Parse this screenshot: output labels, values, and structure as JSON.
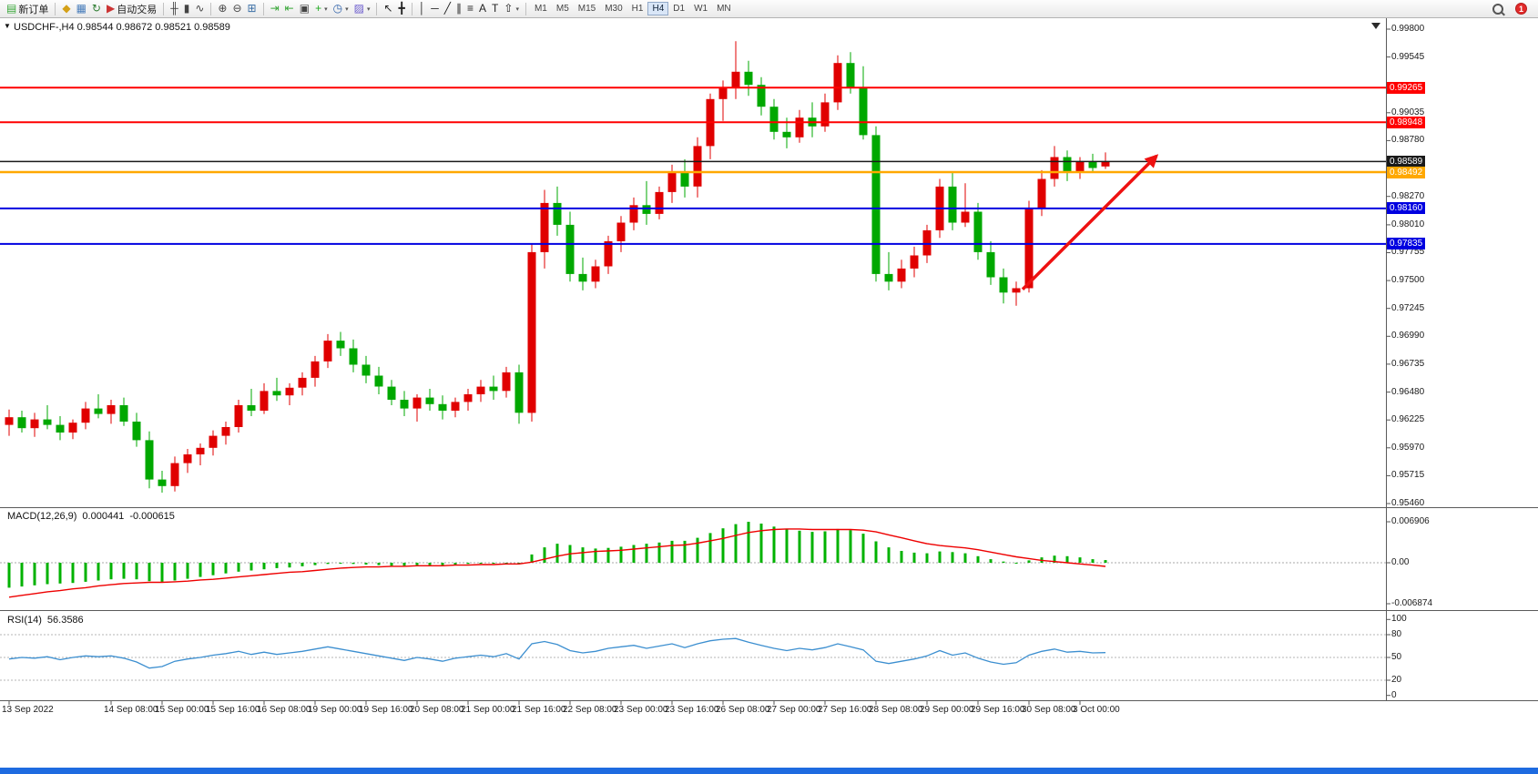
{
  "icons": {
    "triangle_down": "▼",
    "caret_down": "▾"
  },
  "window": {
    "taskbar_color": "#1e6be0"
  },
  "toolbar": {
    "notification_count": "1",
    "active_timeframe": "H4",
    "timeframes": [
      "M1",
      "M5",
      "M15",
      "M30",
      "H1",
      "H4",
      "D1",
      "W1",
      "MN"
    ],
    "items": [
      {
        "type": "button",
        "name": "new-order-button",
        "glyph": "▤",
        "color": "#3aa83a",
        "label": "新订单"
      },
      {
        "type": "sep"
      },
      {
        "type": "button",
        "name": "charts-window-button",
        "glyph": "◆",
        "color": "#d4a017"
      },
      {
        "type": "button",
        "name": "profiles-button",
        "glyph": "▦",
        "color": "#4a7ebb"
      },
      {
        "type": "button",
        "name": "refresh-button",
        "glyph": "↻",
        "color": "#2f7d32"
      },
      {
        "type": "button",
        "name": "auto-trading-button",
        "glyph": "▶",
        "color": "#cc3333",
        "label": "自动交易"
      },
      {
        "type": "sep"
      },
      {
        "type": "button",
        "name": "bar-chart-button",
        "glyph": "╫",
        "color": "#444444"
      },
      {
        "type": "button",
        "name": "candlestick-chart-button",
        "glyph": "▮",
        "color": "#444444"
      },
      {
        "type": "button",
        "name": "line-chart-button",
        "glyph": "∿",
        "color": "#444444"
      },
      {
        "type": "sep"
      },
      {
        "type": "button",
        "name": "zoom-in-button",
        "glyph": "⊕",
        "color": "#444444"
      },
      {
        "type": "button",
        "name": "zoom-out-button",
        "glyph": "⊖",
        "color": "#444444"
      },
      {
        "type": "button",
        "name": "tile-windows-button",
        "glyph": "⊞",
        "color": "#3a6ea5"
      },
      {
        "type": "sep"
      },
      {
        "type": "button",
        "name": "auto-scroll-button",
        "glyph": "⇥",
        "color": "#3aa83a"
      },
      {
        "type": "button",
        "name": "chart-shift-button",
        "glyph": "⇤",
        "color": "#3aa83a"
      },
      {
        "type": "button",
        "name": "new-chart-button",
        "glyph": "▣",
        "color": "#444444"
      },
      {
        "type": "button",
        "name": "indicators-button",
        "glyph": "+",
        "color": "#1faa1f",
        "caret": true
      },
      {
        "type": "button",
        "name": "periods-button",
        "glyph": "◷",
        "color": "#2b5fa8",
        "caret": true
      },
      {
        "type": "button",
        "name": "templates-button",
        "glyph": "▨",
        "color": "#6a5acd",
        "caret": true
      },
      {
        "type": "sep"
      },
      {
        "type": "button",
        "name": "cursor-button",
        "glyph": "↖",
        "color": "#222222"
      },
      {
        "type": "button",
        "name": "crosshair-button",
        "glyph": "╋",
        "color": "#222222"
      },
      {
        "type": "sep"
      },
      {
        "type": "button",
        "name": "vertical-line-button",
        "glyph": "│",
        "color": "#222222"
      },
      {
        "type": "button",
        "name": "horizontal-line-button",
        "glyph": "─",
        "color": "#222222"
      },
      {
        "type": "button",
        "name": "trendline-button",
        "glyph": "╱",
        "color": "#222222"
      },
      {
        "type": "button",
        "name": "channel-button",
        "glyph": "∥",
        "color": "#222222"
      },
      {
        "type": "button",
        "name": "fibonacci-button",
        "glyph": "≡",
        "color": "#222222"
      },
      {
        "type": "button",
        "name": "text-button",
        "glyph": "A",
        "color": "#222222"
      },
      {
        "type": "button",
        "name": "label-button",
        "glyph": "T",
        "color": "#222222"
      },
      {
        "type": "button",
        "name": "arrows-button",
        "glyph": "⇧",
        "color": "#222222",
        "caret": true
      },
      {
        "type": "sep"
      }
    ]
  },
  "chart": {
    "header_text": "USDCHF-,H4  0.98544 0.98672 0.98521 0.98589",
    "macd_label": "MACD(12,26,9)",
    "macd_main_value": "0.000441",
    "macd_signal_value": "-0.000615",
    "rsi_label": "RSI(14)",
    "rsi_value": "56.3586"
  },
  "chart_data": {
    "type": "candlestick",
    "symbol": "USDCHF",
    "period": "H4",
    "ohlc_current": {
      "open": 0.98544,
      "high": 0.98672,
      "low": 0.98521,
      "close": 0.98589
    },
    "ylim": [
      0.9546,
      0.998
    ],
    "bull_color": "#e00000",
    "bear_color": "#00a800",
    "candles": [
      [
        0.9618,
        0.9632,
        0.9608,
        0.9625
      ],
      [
        0.9625,
        0.9631,
        0.9611,
        0.9615
      ],
      [
        0.9615,
        0.9629,
        0.9607,
        0.9623
      ],
      [
        0.9623,
        0.9636,
        0.9614,
        0.9618
      ],
      [
        0.9618,
        0.9626,
        0.9604,
        0.9611
      ],
      [
        0.9611,
        0.9623,
        0.9605,
        0.962
      ],
      [
        0.962,
        0.9639,
        0.9614,
        0.9633
      ],
      [
        0.9633,
        0.9646,
        0.9624,
        0.9628
      ],
      [
        0.9628,
        0.9641,
        0.9619,
        0.9636
      ],
      [
        0.9636,
        0.9643,
        0.9617,
        0.9621
      ],
      [
        0.9621,
        0.9629,
        0.9598,
        0.9604
      ],
      [
        0.9604,
        0.9612,
        0.956,
        0.9568
      ],
      [
        0.9568,
        0.9576,
        0.9556,
        0.9562
      ],
      [
        0.9562,
        0.9589,
        0.9557,
        0.9583
      ],
      [
        0.9583,
        0.9596,
        0.9574,
        0.9591
      ],
      [
        0.9591,
        0.9601,
        0.9581,
        0.9597
      ],
      [
        0.9597,
        0.9613,
        0.959,
        0.9608
      ],
      [
        0.9608,
        0.9621,
        0.96,
        0.9616
      ],
      [
        0.9616,
        0.9641,
        0.9611,
        0.9636
      ],
      [
        0.9636,
        0.9651,
        0.9626,
        0.9631
      ],
      [
        0.9631,
        0.9656,
        0.9628,
        0.9649
      ],
      [
        0.9649,
        0.9661,
        0.964,
        0.9645
      ],
      [
        0.9645,
        0.9656,
        0.9636,
        0.9652
      ],
      [
        0.9652,
        0.9666,
        0.9645,
        0.9661
      ],
      [
        0.9661,
        0.9681,
        0.9653,
        0.9676
      ],
      [
        0.9676,
        0.9701,
        0.967,
        0.9695
      ],
      [
        0.9695,
        0.9703,
        0.9681,
        0.9688
      ],
      [
        0.9688,
        0.9696,
        0.9666,
        0.9673
      ],
      [
        0.9673,
        0.9681,
        0.9656,
        0.9663
      ],
      [
        0.9663,
        0.9671,
        0.9646,
        0.9653
      ],
      [
        0.9653,
        0.9659,
        0.9636,
        0.9641
      ],
      [
        0.9641,
        0.9649,
        0.9626,
        0.9633
      ],
      [
        0.9633,
        0.9646,
        0.9621,
        0.9643
      ],
      [
        0.9643,
        0.9651,
        0.9631,
        0.9637
      ],
      [
        0.9637,
        0.9645,
        0.9623,
        0.9631
      ],
      [
        0.9631,
        0.9643,
        0.9625,
        0.9639
      ],
      [
        0.9639,
        0.9651,
        0.9631,
        0.9646
      ],
      [
        0.9646,
        0.9659,
        0.9639,
        0.9653
      ],
      [
        0.9653,
        0.9663,
        0.9641,
        0.9649
      ],
      [
        0.9649,
        0.9671,
        0.9643,
        0.9666
      ],
      [
        0.9666,
        0.9673,
        0.9619,
        0.9629
      ],
      [
        0.9629,
        0.9783,
        0.9621,
        0.9776
      ],
      [
        0.9776,
        0.9833,
        0.9761,
        0.9821
      ],
      [
        0.9821,
        0.9836,
        0.9791,
        0.9801
      ],
      [
        0.9801,
        0.9813,
        0.9749,
        0.9756
      ],
      [
        0.9756,
        0.9771,
        0.9741,
        0.9749
      ],
      [
        0.9749,
        0.9769,
        0.9743,
        0.9763
      ],
      [
        0.9763,
        0.9791,
        0.9756,
        0.9786
      ],
      [
        0.9786,
        0.9809,
        0.9776,
        0.9803
      ],
      [
        0.9803,
        0.9826,
        0.9796,
        0.9819
      ],
      [
        0.9819,
        0.9841,
        0.9801,
        0.9811
      ],
      [
        0.9811,
        0.9836,
        0.9806,
        0.9831
      ],
      [
        0.9831,
        0.9856,
        0.9821,
        0.9849
      ],
      [
        0.9849,
        0.9861,
        0.9826,
        0.9836
      ],
      [
        0.9836,
        0.9881,
        0.9826,
        0.9873
      ],
      [
        0.9873,
        0.9921,
        0.9861,
        0.9916
      ],
      [
        0.9916,
        0.9933,
        0.9896,
        0.9926
      ],
      [
        0.9926,
        0.9969,
        0.9916,
        0.9941
      ],
      [
        0.9941,
        0.9951,
        0.9919,
        0.9929
      ],
      [
        0.9929,
        0.9936,
        0.9901,
        0.9909
      ],
      [
        0.9909,
        0.9916,
        0.9879,
        0.9886
      ],
      [
        0.9886,
        0.9899,
        0.9871,
        0.9881
      ],
      [
        0.9881,
        0.9906,
        0.9876,
        0.9899
      ],
      [
        0.9899,
        0.9913,
        0.9881,
        0.9891
      ],
      [
        0.9891,
        0.9921,
        0.9886,
        0.9913
      ],
      [
        0.9913,
        0.9956,
        0.9906,
        0.9949
      ],
      [
        0.9949,
        0.9959,
        0.9921,
        0.9926
      ],
      [
        0.9926,
        0.9946,
        0.9879,
        0.9883
      ],
      [
        0.9883,
        0.9891,
        0.9749,
        0.9756
      ],
      [
        0.9756,
        0.9776,
        0.9741,
        0.9749
      ],
      [
        0.9749,
        0.9769,
        0.9743,
        0.9761
      ],
      [
        0.9761,
        0.9781,
        0.9753,
        0.9773
      ],
      [
        0.9773,
        0.9801,
        0.9766,
        0.9796
      ],
      [
        0.9796,
        0.9843,
        0.9789,
        0.9836
      ],
      [
        0.9836,
        0.9849,
        0.9796,
        0.9803
      ],
      [
        0.9803,
        0.9839,
        0.9799,
        0.9813
      ],
      [
        0.9813,
        0.9821,
        0.9769,
        0.9776
      ],
      [
        0.9776,
        0.9786,
        0.9746,
        0.9753
      ],
      [
        0.9753,
        0.9761,
        0.9729,
        0.9739
      ],
      [
        0.9739,
        0.9749,
        0.9727,
        0.9743
      ],
      [
        0.9743,
        0.9823,
        0.9739,
        0.9816
      ],
      [
        0.9816,
        0.9851,
        0.9809,
        0.9843
      ],
      [
        0.9843,
        0.9873,
        0.9836,
        0.9863
      ],
      [
        0.9863,
        0.9869,
        0.9841,
        0.9849
      ],
      [
        0.9849,
        0.9863,
        0.9843,
        0.9859
      ],
      [
        0.9859,
        0.9866,
        0.9849,
        0.9853
      ],
      [
        0.98544,
        0.98672,
        0.98521,
        0.98589
      ]
    ],
    "price_ticks": [
      "0.99800",
      "0.99545",
      "0.99035",
      "0.98780",
      "0.98270",
      "0.98010",
      "0.97755",
      "0.97500",
      "0.97245",
      "0.96990",
      "0.96735",
      "0.96480",
      "0.96225",
      "0.95970",
      "0.95715",
      "0.95460"
    ],
    "hlines": [
      {
        "price": 0.99265,
        "color": "#ff0000",
        "width": 2,
        "label": "0.99265"
      },
      {
        "price": 0.98948,
        "color": "#ff0000",
        "width": 2,
        "label": "0.98948"
      },
      {
        "price": 0.98589,
        "color": "#1a1a1a",
        "width": 1.5,
        "label": "0.98589"
      },
      {
        "price": 0.98492,
        "color": "#ffa800",
        "width": 2.5,
        "label": "0.98492"
      },
      {
        "price": 0.9816,
        "color": "#0000e0",
        "width": 2,
        "label": "0.98160"
      },
      {
        "price": 0.97835,
        "color": "#0000e0",
        "width": 2,
        "label": "0.97835"
      }
    ],
    "trend_arrow": {
      "from_bar": 79.5,
      "from_price": 0.9742,
      "to_bar": 90,
      "to_price": 0.9864,
      "color": "#ee1111"
    },
    "macd": {
      "params": "12,26,9",
      "histogram_color": "#00b200",
      "signal_color": "#ee0000",
      "scale_max": 0.006906,
      "scale_min": -0.006874,
      "axis_labels": [
        "0.006906",
        "0.00",
        "-0.006874"
      ],
      "main": [
        -0.0042,
        -0.004,
        -0.0038,
        -0.0036,
        -0.0035,
        -0.0034,
        -0.0032,
        -0.003,
        -0.0028,
        -0.0027,
        -0.0028,
        -0.0031,
        -0.0032,
        -0.003,
        -0.0027,
        -0.0024,
        -0.0021,
        -0.0018,
        -0.0015,
        -0.0013,
        -0.0011,
        -0.0009,
        -0.0008,
        -0.0006,
        -0.0004,
        -0.0002,
        -0.0001,
        -0.0002,
        -0.0003,
        -0.0004,
        -0.0005,
        -0.0005,
        -0.0004,
        -0.0004,
        -0.0004,
        -0.0003,
        -0.0002,
        -0.0001,
        -0.0001,
        0,
        -0.0002,
        0.0014,
        0.0026,
        0.0032,
        0.003,
        0.0026,
        0.0024,
        0.0025,
        0.0027,
        0.003,
        0.0032,
        0.0034,
        0.0037,
        0.0037,
        0.0042,
        0.005,
        0.0058,
        0.0065,
        0.0069,
        0.0066,
        0.0061,
        0.0056,
        0.0054,
        0.0052,
        0.0053,
        0.0057,
        0.0055,
        0.0049,
        0.0036,
        0.0026,
        0.002,
        0.0017,
        0.0016,
        0.0019,
        0.0018,
        0.0016,
        0.0011,
        0.0006,
        0.0002,
        0,
        0.0004,
        0.0009,
        0.0012,
        0.0011,
        0.0009,
        0.0006,
        0.000441
      ],
      "signal": [
        -0.0058,
        -0.0055,
        -0.0052,
        -0.0049,
        -0.0047,
        -0.0044,
        -0.0042,
        -0.0039,
        -0.0037,
        -0.0035,
        -0.0034,
        -0.0033,
        -0.0033,
        -0.0032,
        -0.0031,
        -0.0029,
        -0.0028,
        -0.0026,
        -0.0024,
        -0.0022,
        -0.002,
        -0.0018,
        -0.0016,
        -0.0015,
        -0.0013,
        -0.0011,
        -0.0009,
        -0.0008,
        -0.0007,
        -0.0007,
        -0.0006,
        -0.0006,
        -0.0005,
        -0.0005,
        -0.0005,
        -0.0004,
        -0.0004,
        -0.0003,
        -0.0003,
        -0.0002,
        -0.0002,
        0.0001,
        0.0006,
        0.0011,
        0.0015,
        0.0017,
        0.0019,
        0.002,
        0.0021,
        0.0023,
        0.0025,
        0.0027,
        0.0029,
        0.003,
        0.0033,
        0.0037,
        0.0041,
        0.0046,
        0.0051,
        0.0054,
        0.0056,
        0.0057,
        0.0057,
        0.0056,
        0.0056,
        0.0056,
        0.0056,
        0.0055,
        0.0052,
        0.0047,
        0.0042,
        0.0037,
        0.0032,
        0.0029,
        0.0027,
        0.0025,
        0.0022,
        0.0018,
        0.0014,
        0.001,
        0.0007,
        0.0004,
        0.0002,
        0,
        -0.0002,
        -0.0004,
        -0.000615
      ]
    },
    "rsi": {
      "period": 14,
      "line_color": "#3c8fd0",
      "levels": [
        80,
        50,
        20
      ],
      "axis_labels": [
        "100",
        "80",
        "50",
        "20",
        "0"
      ],
      "values": [
        48,
        50,
        49,
        51,
        47,
        50,
        52,
        51,
        52,
        49,
        44,
        36,
        38,
        45,
        48,
        50,
        53,
        55,
        58,
        54,
        57,
        54,
        56,
        58,
        61,
        64,
        61,
        58,
        55,
        52,
        49,
        46,
        50,
        48,
        45,
        49,
        51,
        53,
        51,
        55,
        48,
        68,
        71,
        67,
        59,
        56,
        58,
        62,
        64,
        66,
        62,
        65,
        68,
        63,
        68,
        72,
        74,
        75,
        70,
        66,
        62,
        59,
        62,
        60,
        63,
        68,
        64,
        60,
        45,
        42,
        45,
        48,
        52,
        59,
        53,
        56,
        49,
        44,
        41,
        43,
        53,
        58,
        61,
        57,
        58,
        56,
        56.36
      ]
    },
    "time_labels": [
      {
        "text": "13 Sep 2022",
        "bar": 0
      },
      {
        "text": "14 Sep 08:00",
        "bar": 8
      },
      {
        "text": "15 Sep 00:00",
        "bar": 12
      },
      {
        "text": "15 Sep 16:00",
        "bar": 16
      },
      {
        "text": "16 Sep 08:00",
        "bar": 20
      },
      {
        "text": "19 Sep 00:00",
        "bar": 24
      },
      {
        "text": "19 Sep 16:00",
        "bar": 28
      },
      {
        "text": "20 Sep 08:00",
        "bar": 32
      },
      {
        "text": "21 Sep 00:00",
        "bar": 36
      },
      {
        "text": "21 Sep 16:00",
        "bar": 40
      },
      {
        "text": "22 Sep 08:00",
        "bar": 44
      },
      {
        "text": "23 Sep 00:00",
        "bar": 48
      },
      {
        "text": "23 Sep 16:00",
        "bar": 52
      },
      {
        "text": "26 Sep 08:00",
        "bar": 56
      },
      {
        "text": "27 Sep 00:00",
        "bar": 60
      },
      {
        "text": "27 Sep 16:00",
        "bar": 64
      },
      {
        "text": "28 Sep 08:00",
        "bar": 68
      },
      {
        "text": "29 Sep 00:00",
        "bar": 72
      },
      {
        "text": "29 Sep 16:00",
        "bar": 76
      },
      {
        "text": "30 Sep 08:00",
        "bar": 80
      },
      {
        "text": "3 Oct 00:00",
        "bar": 84
      }
    ]
  }
}
